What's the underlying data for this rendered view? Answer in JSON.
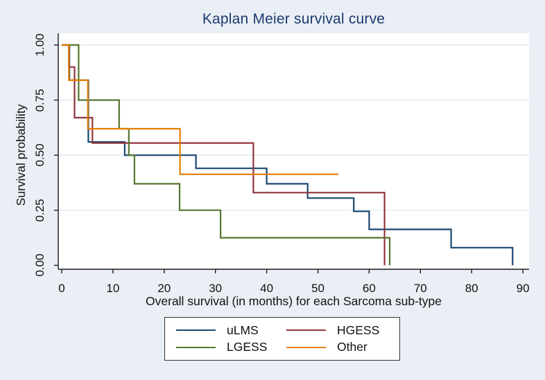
{
  "title": "Kaplan Meier survival curve",
  "axes": {
    "x": {
      "label": "Overall survival (in months) for each Sarcoma sub-type",
      "ticks": [
        0,
        10,
        20,
        30,
        40,
        50,
        60,
        70,
        80,
        90
      ],
      "range": [
        0,
        90
      ]
    },
    "y": {
      "label": "Survival probability",
      "ticks": [
        "0.00",
        "0.25",
        "0.50",
        "0.75",
        "1.00"
      ],
      "range": [
        0,
        1
      ]
    }
  },
  "legend": {
    "entries": [
      {
        "label": "uLMS",
        "color": "#1a476f"
      },
      {
        "label": "HGESS",
        "color": "#90353b"
      },
      {
        "label": "LGESS",
        "color": "#55752f"
      },
      {
        "label": "Other",
        "color": "#e37e00"
      }
    ]
  },
  "colors": {
    "background": "#e9eff5",
    "plot_background": "#ffffff",
    "gridline": "#dfeaf2",
    "axis": "#1a1a1a",
    "title": "#1b3a6d"
  },
  "chart_data": {
    "type": "line",
    "step": true,
    "title": "Kaplan Meier survival curve",
    "xlabel": "Overall survival (in months) for each Sarcoma sub-type",
    "ylabel": "Survival probability",
    "xlim": [
      0,
      90
    ],
    "ylim": [
      0,
      1
    ],
    "grid": "horizontal-only",
    "gridlines_at": [
      0.25,
      0.5,
      0.75,
      1.0
    ],
    "legend_position": "bottom",
    "series": [
      {
        "name": "uLMS",
        "color": "#1a476f",
        "points": [
          [
            0,
            1.0
          ],
          [
            1.5,
            1.0
          ],
          [
            1.5,
            0.84
          ],
          [
            5.2,
            0.84
          ],
          [
            5.2,
            0.56
          ],
          [
            12.3,
            0.56
          ],
          [
            12.3,
            0.5
          ],
          [
            26.2,
            0.5
          ],
          [
            26.2,
            0.44
          ],
          [
            40,
            0.44
          ],
          [
            40,
            0.37
          ],
          [
            48,
            0.37
          ],
          [
            48,
            0.305
          ],
          [
            57,
            0.305
          ],
          [
            57,
            0.245
          ],
          [
            60,
            0.245
          ],
          [
            60,
            0.163
          ],
          [
            76,
            0.163
          ],
          [
            76,
            0.08
          ],
          [
            88,
            0.08
          ],
          [
            88,
            0
          ]
        ]
      },
      {
        "name": "HGESS",
        "color": "#90353b",
        "points": [
          [
            0,
            1.0
          ],
          [
            1.4,
            1.0
          ],
          [
            1.4,
            0.9
          ],
          [
            2.5,
            0.9
          ],
          [
            2.5,
            0.67
          ],
          [
            6,
            0.67
          ],
          [
            6,
            0.555
          ],
          [
            37.4,
            0.555
          ],
          [
            37.4,
            0.33
          ],
          [
            63,
            0.33
          ],
          [
            63,
            0
          ]
        ]
      },
      {
        "name": "LGESS",
        "color": "#55752f",
        "points": [
          [
            0,
            1.0
          ],
          [
            3.3,
            1.0
          ],
          [
            3.3,
            0.75
          ],
          [
            11.2,
            0.75
          ],
          [
            11.2,
            0.62
          ],
          [
            13.1,
            0.62
          ],
          [
            13.1,
            0.5
          ],
          [
            14.2,
            0.5
          ],
          [
            14.2,
            0.37
          ],
          [
            23,
            0.37
          ],
          [
            23,
            0.25
          ],
          [
            31,
            0.25
          ],
          [
            31,
            0.125
          ],
          [
            64,
            0.125
          ],
          [
            64,
            0
          ]
        ]
      },
      {
        "name": "Other",
        "color": "#e37e00",
        "points": [
          [
            0,
            1.0
          ],
          [
            1.4,
            1.0
          ],
          [
            1.4,
            0.84
          ],
          [
            5.1,
            0.84
          ],
          [
            5.1,
            0.62
          ],
          [
            23.1,
            0.62
          ],
          [
            23.1,
            0.413
          ],
          [
            54,
            0.413
          ]
        ]
      }
    ]
  }
}
